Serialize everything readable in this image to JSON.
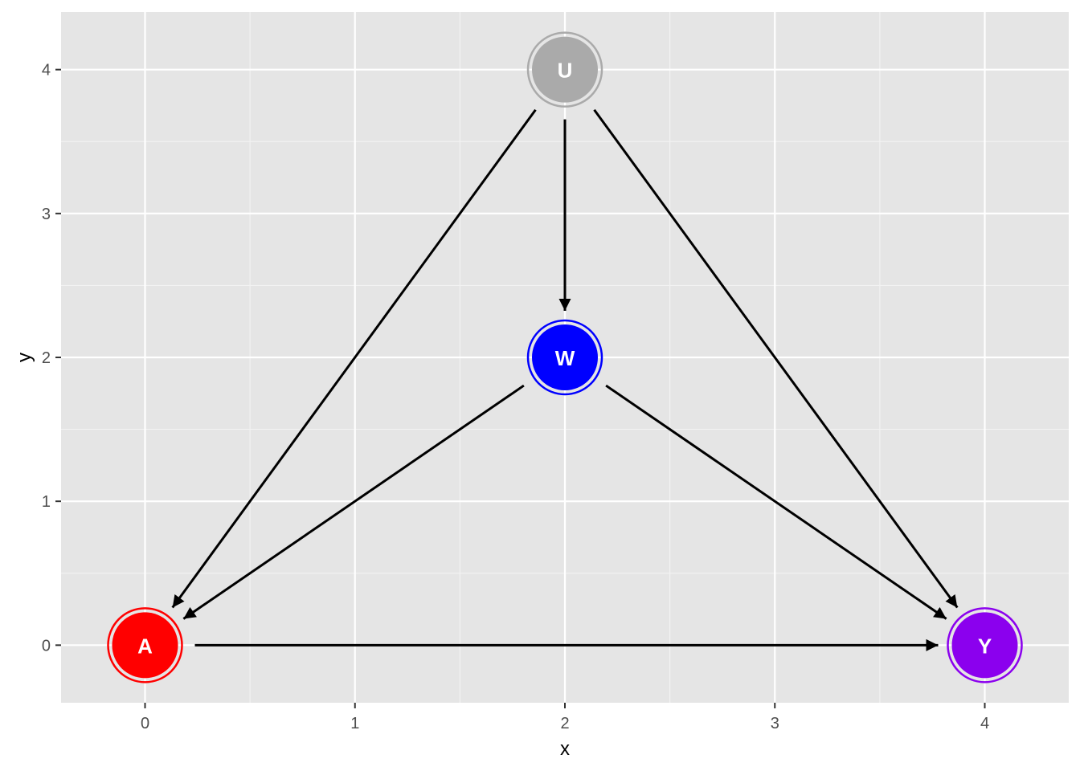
{
  "chart_data": {
    "type": "scatter",
    "xlabel": "x",
    "ylabel": "y",
    "xlim": [
      -0.4,
      4.4
    ],
    "ylim": [
      -0.4,
      4.4
    ],
    "x_ticks": [
      0,
      1,
      2,
      3,
      4
    ],
    "y_ticks": [
      0,
      1,
      2,
      3,
      4
    ],
    "x_tick_labels": [
      "0",
      "1",
      "2",
      "3",
      "4"
    ],
    "y_tick_labels": [
      "0",
      "1",
      "2",
      "3",
      "4"
    ],
    "grid": true,
    "background": "#e5e5e5",
    "nodes": [
      {
        "id": "U",
        "label": "U",
        "x": 2,
        "y": 4,
        "color": "#aaaaaa"
      },
      {
        "id": "W",
        "label": "W",
        "x": 2,
        "y": 2,
        "color": "#0000ff"
      },
      {
        "id": "A",
        "label": "A",
        "x": 0,
        "y": 0,
        "color": "#ff0000"
      },
      {
        "id": "Y",
        "label": "Y",
        "x": 4,
        "y": 0,
        "color": "#8b00ee"
      }
    ],
    "edges": [
      {
        "from": "U",
        "to": "A"
      },
      {
        "from": "U",
        "to": "W"
      },
      {
        "from": "U",
        "to": "Y"
      },
      {
        "from": "W",
        "to": "A"
      },
      {
        "from": "W",
        "to": "Y"
      },
      {
        "from": "A",
        "to": "Y"
      }
    ]
  }
}
